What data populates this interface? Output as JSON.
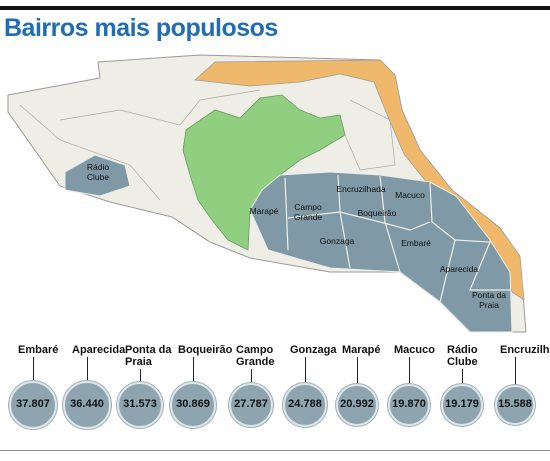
{
  "chart_data": {
    "type": "bubble",
    "title": "Bairros mais populosos",
    "categories": [
      "Embaré",
      "Aparecida",
      "Ponta da Praia",
      "Boqueirão",
      "Campo Grande",
      "Gonzaga",
      "Marapé",
      "Macuco",
      "Rádio Clube",
      "Encruzilhada"
    ],
    "values": [
      37807,
      36440,
      31573,
      30869,
      27787,
      24788,
      20992,
      19870,
      19179,
      15588
    ],
    "value_labels": [
      "37.807",
      "36.440",
      "31.573",
      "30.869",
      "27.787",
      "24.788",
      "20.992",
      "19.870",
      "19.179",
      "15.588"
    ],
    "color": "#8ea5af",
    "annotations": [
      "Rádio Clube",
      "Marapé",
      "Campo Grande",
      "Encruzilhada",
      "Macuco",
      "Boqueirão",
      "Gonzaga",
      "Embaré",
      "Aparecida",
      "Ponta da Praia"
    ]
  }
}
